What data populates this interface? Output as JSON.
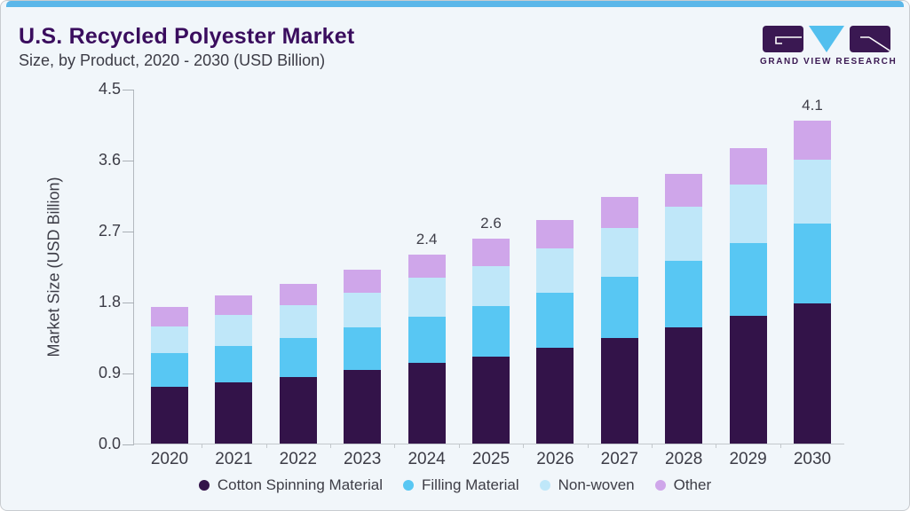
{
  "header": {
    "title": "U.S. Recycled Polyester Market",
    "subtitle": "Size, by Product, 2020 - 2030 (USD Billion)"
  },
  "logo": {
    "brand": "GRAND VIEW RESEARCH",
    "mark_purple": "#3a1852",
    "mark_blue": "#52bfee"
  },
  "chart_data": {
    "type": "bar",
    "stacked": true,
    "title": "U.S. Recycled Polyester Market Size, by Product, 2020 - 2030 (USD Billion)",
    "xlabel": "",
    "ylabel": "Market Size (USD Billion)",
    "ylim": [
      0,
      4.5
    ],
    "yticks": [
      0.0,
      0.9,
      1.8,
      2.7,
      3.6,
      4.5
    ],
    "grid": false,
    "legend_position": "bottom",
    "categories": [
      "2020",
      "2021",
      "2022",
      "2023",
      "2024",
      "2025",
      "2026",
      "2027",
      "2028",
      "2029",
      "2030"
    ],
    "series": [
      {
        "name": "Cotton Spinning Material",
        "color": "#331349",
        "values": [
          0.72,
          0.78,
          0.84,
          0.93,
          1.02,
          1.1,
          1.21,
          1.34,
          1.47,
          1.62,
          1.78
        ]
      },
      {
        "name": "Filling Material",
        "color": "#58c7f3",
        "values": [
          0.43,
          0.46,
          0.5,
          0.54,
          0.59,
          0.64,
          0.7,
          0.77,
          0.85,
          0.92,
          1.01
        ]
      },
      {
        "name": "Non-woven",
        "color": "#bfe7f9",
        "values": [
          0.34,
          0.39,
          0.41,
          0.44,
          0.49,
          0.51,
          0.56,
          0.62,
          0.68,
          0.74,
          0.81
        ]
      },
      {
        "name": "Other",
        "color": "#cfa6ea",
        "values": [
          0.24,
          0.25,
          0.27,
          0.29,
          0.3,
          0.35,
          0.36,
          0.4,
          0.42,
          0.47,
          0.5
        ]
      }
    ],
    "bar_labels": [
      "",
      "",
      "",
      "",
      "2.4",
      "2.6",
      "",
      "",
      "",
      "",
      "4.1"
    ],
    "totals": [
      1.73,
      1.88,
      2.02,
      2.2,
      2.4,
      2.6,
      2.83,
      3.13,
      3.42,
      3.75,
      4.1
    ]
  },
  "colors": {
    "background": "#f1f6fa",
    "top_strip": "#5bb7e9",
    "title": "#3a0d5e",
    "text": "#3c3c46",
    "axis": "#b3b9bf"
  }
}
